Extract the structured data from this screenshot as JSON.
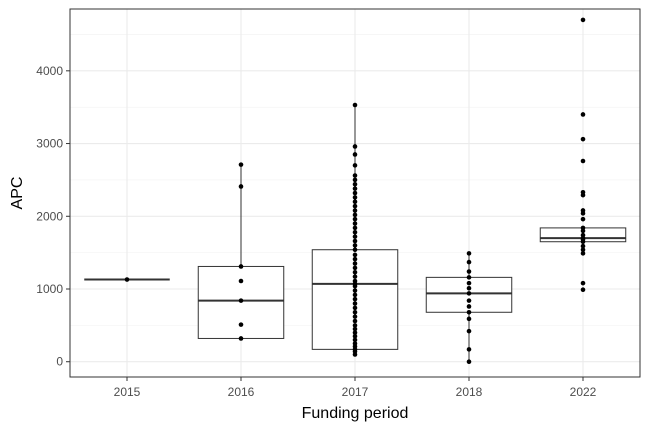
{
  "chart_data": {
    "type": "box",
    "xlabel": "Funding period",
    "ylabel": "APC",
    "ylim": [
      -210,
      4850
    ],
    "y_ticks": [
      0,
      1000,
      2000,
      3000,
      4000
    ],
    "y_tick_labels": [
      "0",
      "1000",
      "2000",
      "3000",
      "4000"
    ],
    "categories": [
      "2015",
      "2016",
      "2017",
      "2018",
      "2022"
    ],
    "grid": true,
    "boxes": [
      {
        "category": "2015",
        "min": 1130,
        "q1": 1130,
        "median": 1130,
        "q3": 1130,
        "max": 1130
      },
      {
        "category": "2016",
        "min": 320,
        "q1": 320,
        "median": 840,
        "q3": 1310,
        "max": 2710
      },
      {
        "category": "2017",
        "min": 100,
        "q1": 170,
        "median": 1070,
        "q3": 1540,
        "max": 3530
      },
      {
        "category": "2018",
        "min": 0,
        "q1": 680,
        "median": 940,
        "q3": 1160,
        "max": 1490
      },
      {
        "category": "2022",
        "min": 1650,
        "q1": 1650,
        "median": 1700,
        "q3": 1840,
        "max": 1840
      }
    ],
    "points": [
      {
        "category": "2015",
        "values": [
          1130
        ]
      },
      {
        "category": "2016",
        "values": [
          320,
          510,
          840,
          1110,
          1310,
          2410,
          2710
        ]
      },
      {
        "category": "2017",
        "values": [
          100,
          140,
          170,
          210,
          250,
          300,
          350,
          400,
          450,
          500,
          560,
          620,
          680,
          740,
          800,
          860,
          920,
          980,
          1040,
          1070,
          1110,
          1170,
          1230,
          1290,
          1350,
          1410,
          1470,
          1540,
          1600,
          1660,
          1720,
          1780,
          1840,
          1900,
          1960,
          2020,
          2080,
          2140,
          2200,
          2260,
          2320,
          2380,
          2440,
          2500,
          2560,
          2700,
          2850,
          2960,
          3530
        ]
      },
      {
        "category": "2018",
        "values": [
          0,
          170,
          420,
          590,
          680,
          760,
          840,
          940,
          1010,
          1080,
          1160,
          1240,
          1370,
          1490
        ]
      },
      {
        "category": "2022",
        "values": [
          990,
          1080,
          1490,
          1540,
          1590,
          1650,
          1680,
          1700,
          1740,
          1800,
          1840,
          1960,
          2040,
          2080,
          2290,
          2330,
          2760,
          3060,
          3400,
          4700
        ]
      }
    ]
  }
}
